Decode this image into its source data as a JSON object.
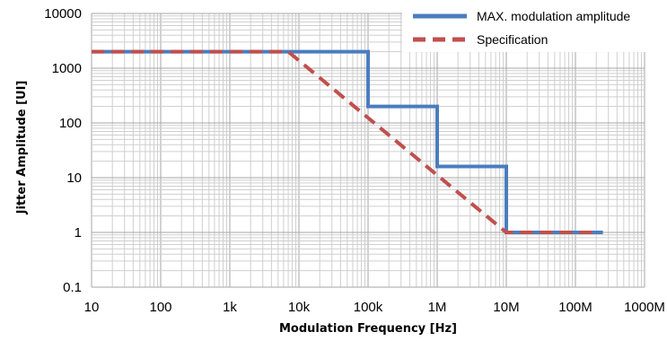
{
  "chart_data": {
    "type": "line",
    "title": "",
    "xlabel": "Modulation Frequency [Hz]",
    "ylabel": "Jitter Amplitude [UI]",
    "xscale": "log",
    "yscale": "log",
    "xlim": [
      10,
      1000000000
    ],
    "ylim": [
      0.1,
      10000
    ],
    "grid": true,
    "legend_position": "top-right",
    "x_tick_labels": [
      "10",
      "100",
      "1k",
      "10k",
      "100k",
      "1M",
      "10M",
      "100M",
      "1000M"
    ],
    "y_tick_labels": [
      "10000",
      "1000",
      "100",
      "10",
      "1",
      "0.1"
    ],
    "series": [
      {
        "name": "MAX. modulation amplitude",
        "color": "#4a7dbf",
        "style": "solid",
        "x": [
          10,
          100000,
          100000,
          1000000,
          1000000,
          10000000,
          10000000,
          250000000
        ],
        "y": [
          2000,
          2000,
          200,
          200,
          16,
          16,
          1,
          1
        ]
      },
      {
        "name": "Specification",
        "color": "#c0504d",
        "style": "dashed",
        "x": [
          10,
          7000,
          10000000,
          200000000
        ],
        "y": [
          2000,
          2000,
          1,
          1
        ]
      }
    ]
  }
}
